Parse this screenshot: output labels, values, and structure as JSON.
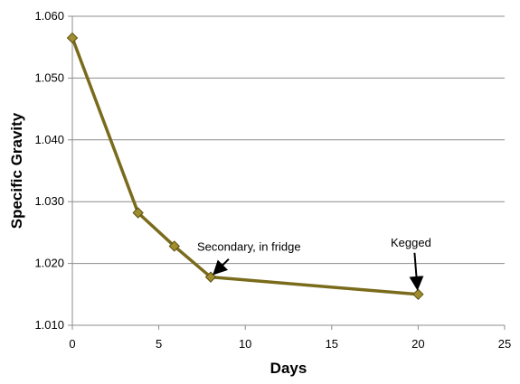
{
  "chart_data": {
    "type": "line",
    "title": "",
    "xlabel": "Days",
    "ylabel": "Specific Gravity",
    "xlim": [
      0,
      25
    ],
    "ylim": [
      1.01,
      1.06
    ],
    "x_ticks": [
      "0",
      "5",
      "10",
      "15",
      "20",
      "25"
    ],
    "y_ticks": [
      "1.010",
      "1.020",
      "1.030",
      "1.040",
      "1.050",
      "1.060"
    ],
    "grid": "horizontal",
    "legend": "none",
    "series": [
      {
        "color": "#7a6b1c",
        "marker_color": "#a08d2e",
        "marker": "diamond",
        "points": [
          {
            "x": 0,
            "y": 1.0565
          },
          {
            "x": 3.8,
            "y": 1.0282
          },
          {
            "x": 5.9,
            "y": 1.0228
          },
          {
            "x": 8.0,
            "y": 1.0178
          },
          {
            "x": 20.0,
            "y": 1.015
          }
        ]
      }
    ],
    "annotations": [
      {
        "text": "Secondary, in fridge",
        "x": 8.0,
        "y": 1.0178
      },
      {
        "text": "Kegged",
        "x": 20.0,
        "y": 1.015
      }
    ]
  }
}
